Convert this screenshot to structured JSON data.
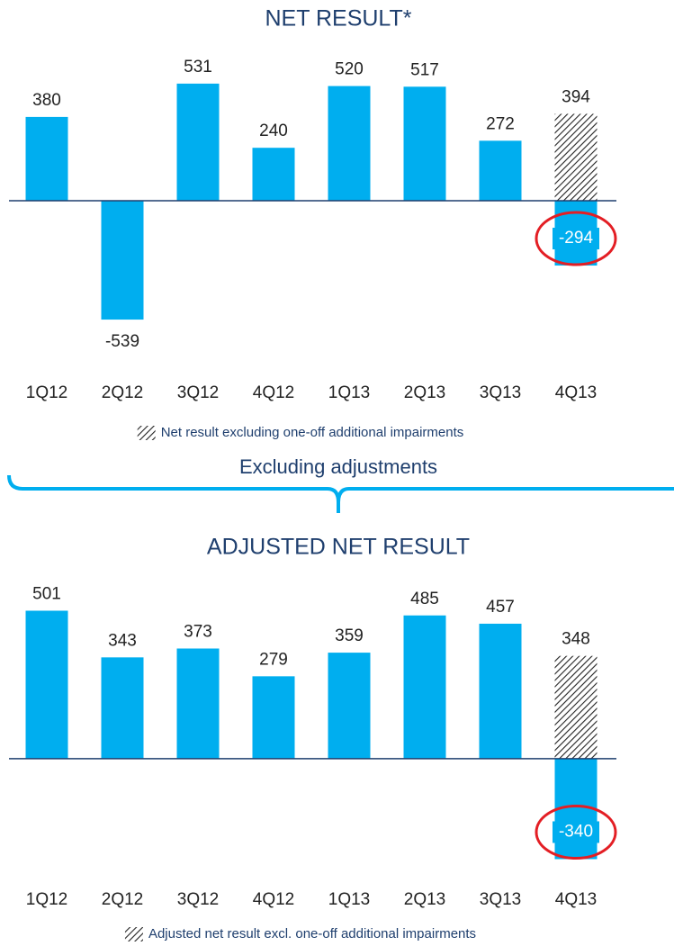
{
  "chart_data": [
    {
      "type": "bar",
      "title": "NET RESULT*",
      "categories": [
        "1Q12",
        "2Q12",
        "3Q12",
        "4Q12",
        "1Q13",
        "2Q13",
        "3Q13",
        "4Q13"
      ],
      "series": [
        {
          "color": "#00aeef",
          "values": [
            380,
            -539,
            531,
            240,
            520,
            517,
            272,
            -294
          ]
        },
        {
          "name": "Net result excluding one-off additional impairments",
          "pattern": "hatch",
          "color": "#222222",
          "values": [
            null,
            null,
            null,
            null,
            null,
            null,
            null,
            394
          ]
        }
      ],
      "ylim": [
        -700,
        700
      ]
    },
    {
      "type": "bar",
      "title": "ADJUSTED NET RESULT",
      "categories": [
        "1Q12",
        "2Q12",
        "3Q12",
        "4Q12",
        "1Q13",
        "2Q13",
        "3Q13",
        "4Q13"
      ],
      "series": [
        {
          "color": "#00aeef",
          "values": [
            501,
            343,
            373,
            279,
            359,
            485,
            457,
            -340
          ]
        },
        {
          "name": "Adjusted net result excl. one-off additional impairments",
          "pattern": "hatch",
          "color": "#222222",
          "values": [
            null,
            null,
            null,
            null,
            null,
            null,
            null,
            348
          ]
        }
      ],
      "ylim": [
        -500,
        600
      ]
    }
  ],
  "divider": {
    "label": "Excluding adjustments"
  }
}
